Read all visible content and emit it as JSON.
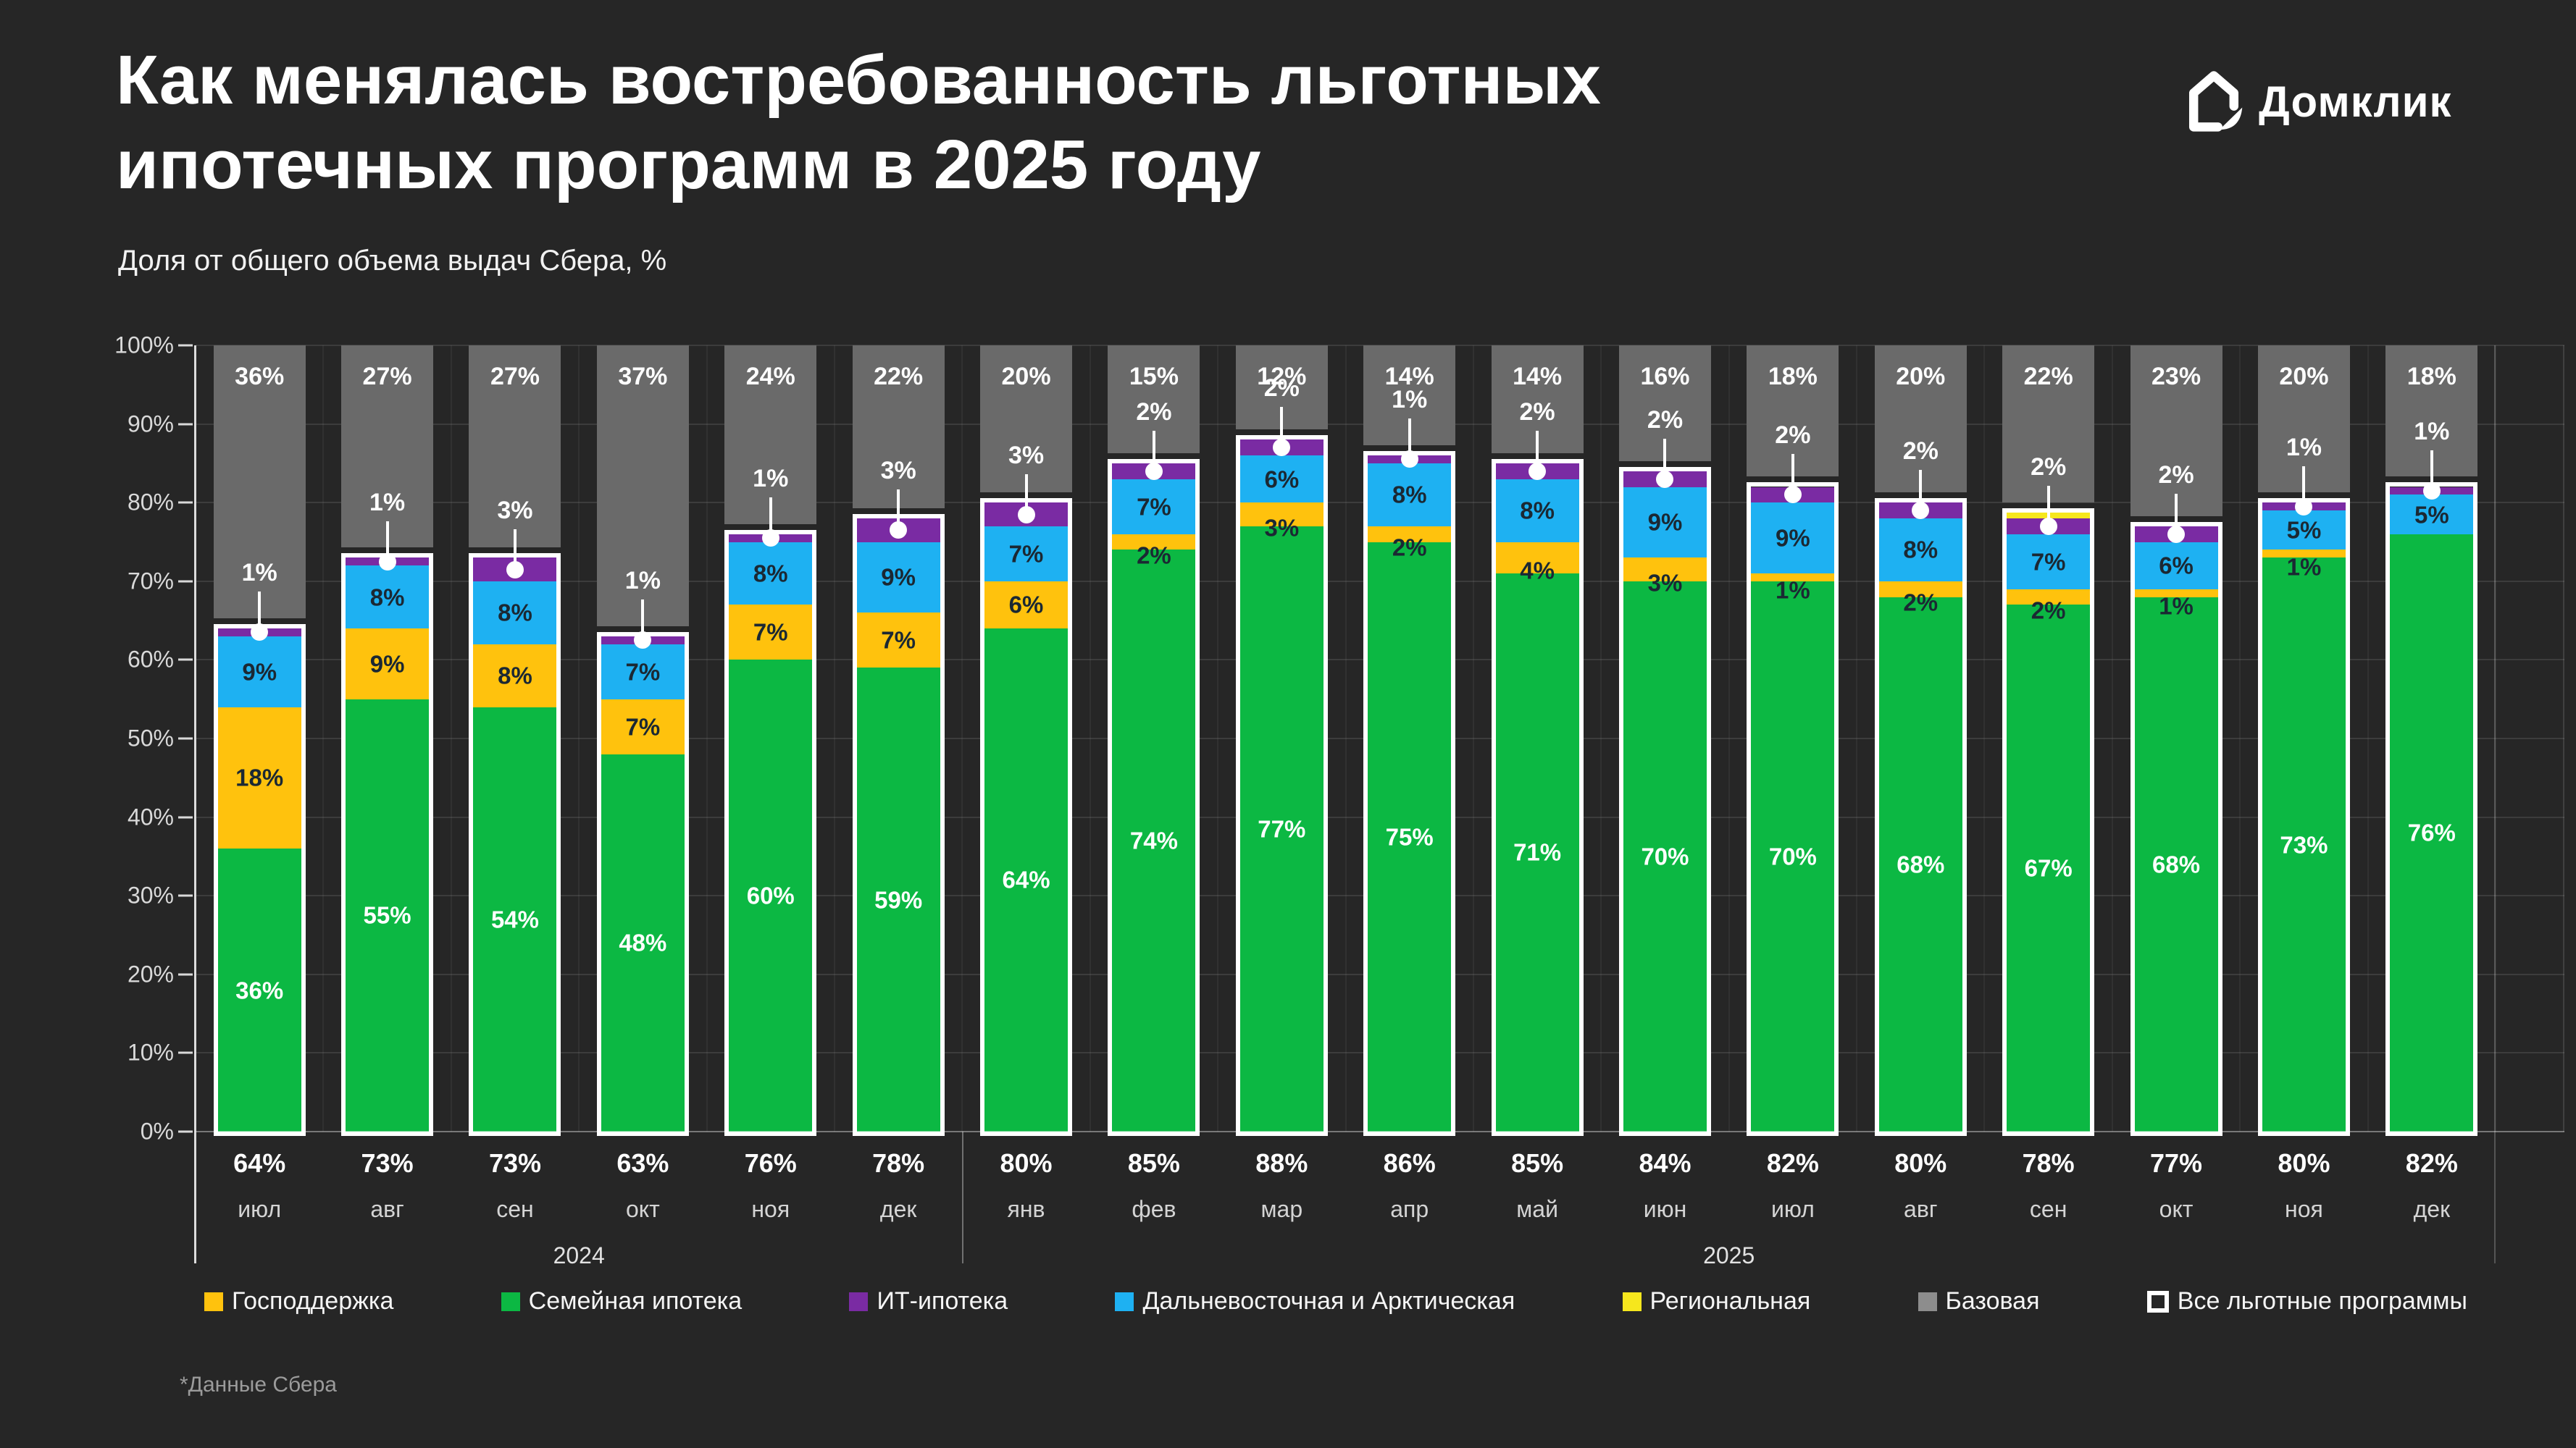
{
  "header": {
    "title_line1": "Как менялась востребованность льготных",
    "title_line2": "ипотечных программ в 2025 году",
    "subtitle": "Доля от общего объема выдач Сбера, %",
    "logo_text": "Домклик"
  },
  "footnote": "*Данные Сбера",
  "colors": {
    "page_bg": "#262626",
    "family": "#0cb843",
    "state": "#ffc20d",
    "fareast": "#1eb1f2",
    "it": "#7a2ba3",
    "regional": "#f6e71d",
    "base": "#6a6a6a",
    "base_legend": "#8d8d8d",
    "label_dark": "#1b2833",
    "outline": "#ffffff"
  },
  "chart_data": {
    "type": "bar",
    "stacked": true,
    "title": "Как менялась востребованность льготных ипотечных программ в 2025 году",
    "subtitle": "Доля от общего объема выдач Сбера, %",
    "ylabel": "Доля от общего объема выдач Сбера, %",
    "ylim": [
      0,
      100
    ],
    "grid": true,
    "legend_position": "bottom",
    "y_ticks": [
      "0%",
      "10%",
      "20%",
      "30%",
      "40%",
      "50%",
      "60%",
      "70%",
      "80%",
      "90%",
      "100%"
    ],
    "series_order_bottom_to_top": [
      "Семейная ипотека",
      "Господдержка",
      "Дальневосточная и Арктическая",
      "ИТ-ипотека",
      "Региональная",
      "Базовая"
    ],
    "year_groups": [
      {
        "label": "2024",
        "cols": 6
      },
      {
        "label": "2025",
        "cols": 12
      }
    ],
    "months": [
      {
        "month": "июл",
        "total": "64%",
        "base_label": "36%",
        "segs": [
          {
            "k": "family",
            "v": 36,
            "label": "36%"
          },
          {
            "k": "state",
            "v": 18,
            "label": "18%"
          },
          {
            "k": "fareast",
            "v": 9,
            "label": "9%"
          },
          {
            "k": "it",
            "v": 1,
            "label": "1%"
          }
        ]
      },
      {
        "month": "авг",
        "total": "73%",
        "base_label": "27%",
        "segs": [
          {
            "k": "family",
            "v": 55,
            "label": "55%"
          },
          {
            "k": "state",
            "v": 9,
            "label": "9%"
          },
          {
            "k": "fareast",
            "v": 8,
            "label": "8%"
          },
          {
            "k": "it",
            "v": 1,
            "label": "1%"
          }
        ]
      },
      {
        "month": "сен",
        "total": "73%",
        "base_label": "27%",
        "segs": [
          {
            "k": "family",
            "v": 54,
            "label": "54%"
          },
          {
            "k": "state",
            "v": 8,
            "label": "8%"
          },
          {
            "k": "fareast",
            "v": 8,
            "label": "8%"
          },
          {
            "k": "it",
            "v": 3,
            "label": "3%"
          }
        ]
      },
      {
        "month": "окт",
        "total": "63%",
        "base_label": "37%",
        "segs": [
          {
            "k": "family",
            "v": 48,
            "label": "48%"
          },
          {
            "k": "state",
            "v": 7,
            "label": "7%"
          },
          {
            "k": "fareast",
            "v": 7,
            "label": "7%"
          },
          {
            "k": "it",
            "v": 1,
            "label": "1%"
          }
        ]
      },
      {
        "month": "ноя",
        "total": "76%",
        "base_label": "24%",
        "segs": [
          {
            "k": "family",
            "v": 60,
            "label": "60%"
          },
          {
            "k": "state",
            "v": 7,
            "label": "7%"
          },
          {
            "k": "fareast",
            "v": 8,
            "label": "8%"
          },
          {
            "k": "it",
            "v": 1,
            "label": "1%"
          }
        ]
      },
      {
        "month": "дек",
        "total": "78%",
        "base_label": "22%",
        "segs": [
          {
            "k": "family",
            "v": 59,
            "label": "59%"
          },
          {
            "k": "state",
            "v": 7,
            "label": "7%"
          },
          {
            "k": "fareast",
            "v": 9,
            "label": "9%"
          },
          {
            "k": "it",
            "v": 3,
            "label": "3%"
          }
        ]
      },
      {
        "month": "янв",
        "total": "80%",
        "base_label": "20%",
        "segs": [
          {
            "k": "family",
            "v": 64,
            "label": "64%"
          },
          {
            "k": "state",
            "v": 6,
            "label": "6%"
          },
          {
            "k": "fareast",
            "v": 7,
            "label": "7%"
          },
          {
            "k": "it",
            "v": 3,
            "label": "3%"
          }
        ]
      },
      {
        "month": "фев",
        "total": "85%",
        "base_label": "15%",
        "segs": [
          {
            "k": "family",
            "v": 74,
            "label": "74%"
          },
          {
            "k": "state",
            "v": 2,
            "label": "2%"
          },
          {
            "k": "fareast",
            "v": 7,
            "label": "7%"
          },
          {
            "k": "it",
            "v": 2,
            "label": "2%"
          }
        ]
      },
      {
        "month": "мар",
        "total": "88%",
        "base_label": "12%",
        "segs": [
          {
            "k": "family",
            "v": 77,
            "label": "77%"
          },
          {
            "k": "state",
            "v": 3,
            "label": "3%"
          },
          {
            "k": "fareast",
            "v": 6,
            "label": "6%"
          },
          {
            "k": "it",
            "v": 2,
            "label": "2%"
          }
        ]
      },
      {
        "month": "апр",
        "total": "86%",
        "base_label": "14%",
        "segs": [
          {
            "k": "family",
            "v": 75,
            "label": "75%"
          },
          {
            "k": "state",
            "v": 2,
            "label": "2%"
          },
          {
            "k": "fareast",
            "v": 8,
            "label": "8%"
          },
          {
            "k": "it",
            "v": 1,
            "label": "1%"
          }
        ]
      },
      {
        "month": "май",
        "total": "85%",
        "base_label": "14%",
        "segs": [
          {
            "k": "family",
            "v": 71,
            "label": "71%"
          },
          {
            "k": "state",
            "v": 4,
            "label": "4%"
          },
          {
            "k": "fareast",
            "v": 8,
            "label": "8%"
          },
          {
            "k": "it",
            "v": 2,
            "label": "2%"
          }
        ]
      },
      {
        "month": "июн",
        "total": "84%",
        "base_label": "16%",
        "segs": [
          {
            "k": "family",
            "v": 70,
            "label": "70%"
          },
          {
            "k": "state",
            "v": 3,
            "label": "3%"
          },
          {
            "k": "fareast",
            "v": 9,
            "label": "9%"
          },
          {
            "k": "it",
            "v": 2,
            "label": "2%"
          }
        ]
      },
      {
        "month": "июл",
        "total": "82%",
        "base_label": "18%",
        "segs": [
          {
            "k": "family",
            "v": 70,
            "label": "70%"
          },
          {
            "k": "state",
            "v": 1,
            "label": "1%"
          },
          {
            "k": "fareast",
            "v": 9,
            "label": "9%"
          },
          {
            "k": "it",
            "v": 2,
            "label": "2%"
          }
        ]
      },
      {
        "month": "авг",
        "total": "80%",
        "base_label": "20%",
        "segs": [
          {
            "k": "family",
            "v": 68,
            "label": "68%"
          },
          {
            "k": "state",
            "v": 2,
            "label": "2%"
          },
          {
            "k": "fareast",
            "v": 8,
            "label": "8%"
          },
          {
            "k": "it",
            "v": 2,
            "label": "2%"
          }
        ]
      },
      {
        "month": "сен",
        "total": "78%",
        "base_label": "22%",
        "segs": [
          {
            "k": "family",
            "v": 67,
            "label": "67%"
          },
          {
            "k": "state",
            "v": 2,
            "label": "2%"
          },
          {
            "k": "fareast",
            "v": 7,
            "label": "7%"
          },
          {
            "k": "it",
            "v": 2,
            "label": "2%"
          },
          {
            "k": "regional",
            "v": 0.7,
            "label": null
          }
        ]
      },
      {
        "month": "окт",
        "total": "77%",
        "base_label": "23%",
        "segs": [
          {
            "k": "family",
            "v": 68,
            "label": "68%"
          },
          {
            "k": "state",
            "v": 1,
            "label": "1%"
          },
          {
            "k": "fareast",
            "v": 6,
            "label": "6%"
          },
          {
            "k": "it",
            "v": 2,
            "label": "2%"
          }
        ]
      },
      {
        "month": "ноя",
        "total": "80%",
        "base_label": "20%",
        "segs": [
          {
            "k": "family",
            "v": 73,
            "label": "73%"
          },
          {
            "k": "state",
            "v": 1,
            "label": "1%"
          },
          {
            "k": "fareast",
            "v": 5,
            "label": "5%"
          },
          {
            "k": "it",
            "v": 1,
            "label": "1%"
          }
        ]
      },
      {
        "month": "дек",
        "total": "82%",
        "base_label": "18%",
        "segs": [
          {
            "k": "family",
            "v": 76,
            "label": "76%"
          },
          {
            "k": "fareast",
            "v": 5,
            "label": "5%"
          },
          {
            "k": "it",
            "v": 1,
            "label": "1%"
          }
        ]
      }
    ]
  },
  "legend": [
    {
      "key": "state",
      "label": "Господдержка"
    },
    {
      "key": "family",
      "label": "Семейная ипотека"
    },
    {
      "key": "it",
      "label": "ИТ-ипотека"
    },
    {
      "key": "fareast",
      "label": "Дальневосточная и Арктическая"
    },
    {
      "key": "regional",
      "label": "Региональная"
    },
    {
      "key": "base_legend",
      "label": "Базовая"
    },
    {
      "key": "outline",
      "label": "Все льготные программы",
      "type": "outline"
    }
  ]
}
